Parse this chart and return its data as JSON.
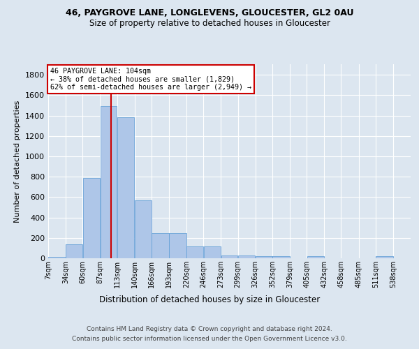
{
  "title1": "46, PAYGROVE LANE, LONGLEVENS, GLOUCESTER, GL2 0AU",
  "title2": "Size of property relative to detached houses in Gloucester",
  "xlabel": "Distribution of detached houses by size in Gloucester",
  "ylabel": "Number of detached properties",
  "bin_labels": [
    "7sqm",
    "34sqm",
    "60sqm",
    "87sqm",
    "113sqm",
    "140sqm",
    "166sqm",
    "193sqm",
    "220sqm",
    "246sqm",
    "273sqm",
    "299sqm",
    "326sqm",
    "352sqm",
    "379sqm",
    "405sqm",
    "432sqm",
    "458sqm",
    "485sqm",
    "511sqm",
    "538sqm"
  ],
  "bar_heights": [
    15,
    135,
    790,
    1490,
    1380,
    570,
    245,
    245,
    115,
    115,
    30,
    30,
    20,
    20,
    0,
    20,
    0,
    0,
    0,
    20,
    0
  ],
  "bar_color": "#aec6e8",
  "bar_edge_color": "#5b9bd5",
  "property_line_x": 104,
  "bin_edges": [
    7,
    34,
    60,
    87,
    113,
    140,
    166,
    193,
    220,
    246,
    273,
    299,
    326,
    352,
    379,
    405,
    432,
    458,
    485,
    511,
    538,
    565
  ],
  "annotation_title": "46 PAYGROVE LANE: 104sqm",
  "annotation_line1": "← 38% of detached houses are smaller (1,829)",
  "annotation_line2": "62% of semi-detached houses are larger (2,949) →",
  "annotation_box_color": "#ffffff",
  "annotation_box_edge": "#cc0000",
  "vline_color": "#cc0000",
  "footer1": "Contains HM Land Registry data © Crown copyright and database right 2024.",
  "footer2": "Contains public sector information licensed under the Open Government Licence v3.0.",
  "ylim": [
    0,
    1900
  ],
  "bg_color": "#dce6f0",
  "plot_bg_color": "#dce6f0",
  "grid_color": "#ffffff"
}
